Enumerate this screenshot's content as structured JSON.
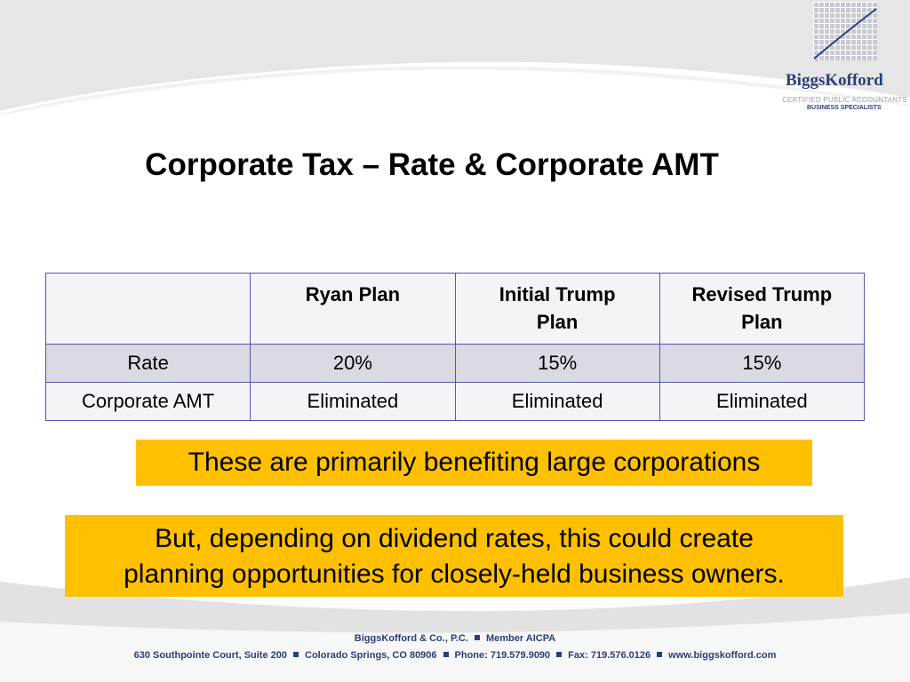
{
  "logo": {
    "name": "BiggsKofford",
    "tagline1": "CERTIFIED PUBLIC ACCOUNTANTS",
    "tagline2": "BUSINESS SPECIALISTS"
  },
  "title": "Corporate Tax – Rate & Corporate AMT",
  "table": {
    "headers": [
      "",
      "Ryan Plan",
      "Initial Trump Plan",
      "Revised Trump Plan"
    ],
    "rows": [
      [
        "Rate",
        "20%",
        "15%",
        "15%"
      ],
      [
        "Corporate AMT",
        "Eliminated",
        "Eliminated",
        "Eliminated"
      ]
    ]
  },
  "callout1": "These are primarily benefiting large corporations",
  "callout2": {
    "lines": [
      "But, depending on dividend rates, this could create",
      "planning opportunities for closely-held business owners."
    ]
  },
  "footer": {
    "line1": [
      "BiggsKofford & Co., P.C.",
      "Member AICPA"
    ],
    "line2": [
      "630 Southpointe Court, Suite 200",
      "Colorado Springs, CO 80906",
      "Phone: 719.579.9090",
      "Fax: 719.576.0126",
      "www.biggskofford.com"
    ]
  }
}
